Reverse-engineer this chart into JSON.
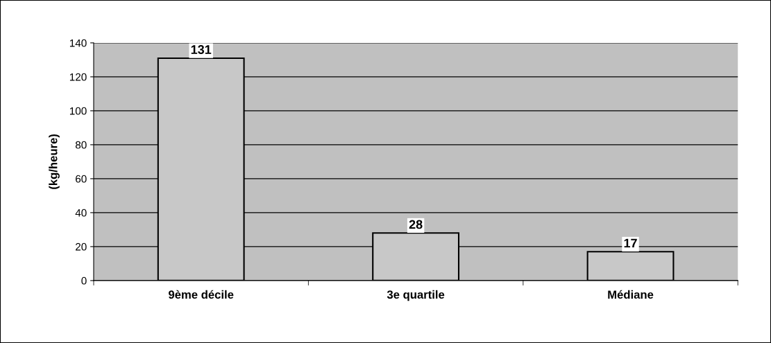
{
  "chart_data": {
    "type": "bar",
    "ylabel": "(kg/heure)",
    "categories": [
      "9ème décile",
      "3e quartile",
      "Médiane"
    ],
    "values": [
      131,
      28,
      17
    ],
    "color": "#c8c8c8",
    "ylim": [
      0,
      140
    ],
    "yticks": [
      0,
      20,
      40,
      60,
      80,
      100,
      120,
      140
    ],
    "grid": "y",
    "data_labels": true
  }
}
